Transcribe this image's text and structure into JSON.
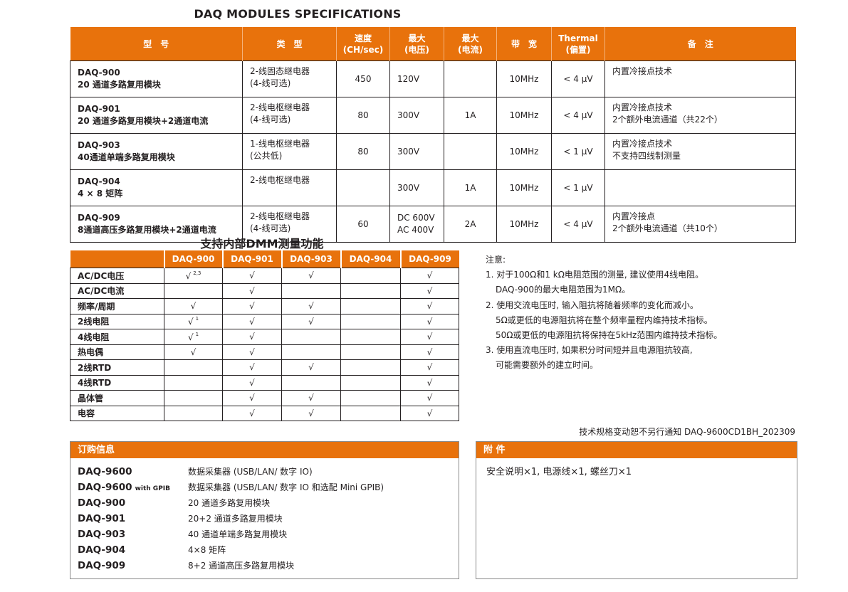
{
  "title": "DAQ MODULES SPECIFICATIONS",
  "colors": {
    "accent": "#e8720c"
  },
  "spec_table": {
    "headers": [
      "型　号",
      "类　型",
      "速度\n(CH/sec)",
      "最大\n(电压)",
      "最大\n(电流)",
      "带　宽",
      "Thermal\n(偏置)",
      "备　注"
    ],
    "rows": [
      {
        "model": "DAQ-900",
        "model_desc": "20 通道多路复用模块",
        "type": "2-线固态继电器\n(4-线可选)",
        "speed": "450",
        "max_voltage": "120V",
        "max_current": "",
        "bandwidth": "10MHz",
        "thermal": "< 4 μV",
        "remarks": "内置冷接点技术"
      },
      {
        "model": "DAQ-901",
        "model_desc": "20  通道多路复用模块+2通道电流",
        "type": "2-线电枢继电器\n(4-线可选)",
        "speed": "80",
        "max_voltage": "300V",
        "max_current": "1A",
        "bandwidth": "10MHz",
        "thermal": "< 4 μV",
        "remarks": "内置冷接点技术\n2个额外电流通道（共22个）"
      },
      {
        "model": "DAQ-903",
        "model_desc": "40通道单端多路复用模块",
        "type": "1-线电枢继电器\n(公共低)",
        "speed": "80",
        "max_voltage": "300V",
        "max_current": "",
        "bandwidth": "10MHz",
        "thermal": "< 1 μV",
        "remarks": "内置冷接点技术\n不支持四线制测量"
      },
      {
        "model": "DAQ-904",
        "model_desc": "4 × 8 矩阵",
        "type": "2-线电枢继电器",
        "speed": "",
        "max_voltage": "300V",
        "max_current": "1A",
        "bandwidth": "10MHz",
        "thermal": "< 1 μV",
        "remarks": ""
      },
      {
        "model": "DAQ-909",
        "model_desc": "8通道高压多路复用模块+2通道电流",
        "type": "2-线电枢继电器\n(4-线可选)",
        "speed": "60",
        "max_voltage": "DC 600V\nAC 400V",
        "max_current": "2A",
        "bandwidth": "10MHz",
        "thermal": "< 4 μV",
        "remarks": "内置冷接点\n2个额外电流通道（共10个）"
      }
    ]
  },
  "dmm": {
    "title": "支持内部DMM测量功能",
    "columns": [
      "DAQ-900",
      "DAQ-901",
      "DAQ-903",
      "DAQ-904",
      "DAQ-909"
    ],
    "check": "√",
    "rows": [
      {
        "label": "AC/DC电压",
        "cells": [
          [
            "√",
            "2,3"
          ],
          [
            "√",
            ""
          ],
          [
            "√",
            ""
          ],
          [
            "",
            ""
          ],
          [
            "√",
            ""
          ]
        ]
      },
      {
        "label": "AC/DC电流",
        "cells": [
          [
            "",
            ""
          ],
          [
            "√",
            ""
          ],
          [
            "",
            ""
          ],
          [
            "",
            ""
          ],
          [
            "√",
            ""
          ]
        ]
      },
      {
        "label": "频率/周期",
        "cells": [
          [
            "√",
            ""
          ],
          [
            "√",
            ""
          ],
          [
            "√",
            ""
          ],
          [
            "",
            ""
          ],
          [
            "√",
            ""
          ]
        ]
      },
      {
        "label": "2线电阻",
        "cells": [
          [
            "√",
            "1"
          ],
          [
            "√",
            ""
          ],
          [
            "√",
            ""
          ],
          [
            "",
            ""
          ],
          [
            "√",
            ""
          ]
        ]
      },
      {
        "label": "4线电阻",
        "cells": [
          [
            "√",
            "1"
          ],
          [
            "√",
            ""
          ],
          [
            "",
            ""
          ],
          [
            "",
            ""
          ],
          [
            "√",
            ""
          ]
        ]
      },
      {
        "label": "热电偶",
        "cells": [
          [
            "√",
            ""
          ],
          [
            "√",
            ""
          ],
          [
            "",
            ""
          ],
          [
            "",
            ""
          ],
          [
            "√",
            ""
          ]
        ]
      },
      {
        "label": "2线RTD",
        "cells": [
          [
            "",
            ""
          ],
          [
            "√",
            ""
          ],
          [
            "√",
            ""
          ],
          [
            "",
            ""
          ],
          [
            "√",
            ""
          ]
        ]
      },
      {
        "label": "4线RTD",
        "cells": [
          [
            "",
            ""
          ],
          [
            "√",
            ""
          ],
          [
            "",
            ""
          ],
          [
            "",
            ""
          ],
          [
            "√",
            ""
          ]
        ]
      },
      {
        "label": "晶体管",
        "cells": [
          [
            "",
            ""
          ],
          [
            "√",
            ""
          ],
          [
            "√",
            ""
          ],
          [
            "",
            ""
          ],
          [
            "√",
            ""
          ]
        ]
      },
      {
        "label": "电容",
        "cells": [
          [
            "",
            ""
          ],
          [
            "√",
            ""
          ],
          [
            "√",
            ""
          ],
          [
            "",
            ""
          ],
          [
            "√",
            ""
          ]
        ]
      }
    ]
  },
  "notes": {
    "heading": "注意:",
    "lines": [
      {
        "text": "1. 对于100Ω和1 kΩ电阻范围的测量, 建议使用4线电阻。",
        "indent": false
      },
      {
        "text": "DAQ-900的最大电阻范围为1MΩ。",
        "indent": true
      },
      {
        "text": "2. 使用交流电压时, 输入阻抗将随着频率的变化而减小。",
        "indent": false
      },
      {
        "text": "5Ω或更低的电源阻抗将在整个频率量程内维持技术指标。",
        "indent": true
      },
      {
        "text": "50Ω或更低的电源阻抗将保持在5kHz范围内维持技术指标。",
        "indent": true
      },
      {
        "text": "3. 使用直流电压时, 如果积分时间短并且电源阻抗较高,",
        "indent": false
      },
      {
        "text": "可能需要额外的建立时间。",
        "indent": true
      }
    ]
  },
  "footer": "技术规格变动恕不另行通知  DAQ-9600CD1BH_202309",
  "ordering": {
    "heading": "订购信息",
    "items": [
      {
        "model": "DAQ-9600",
        "suffix": "",
        "desc": "数据采集器 (USB/LAN/ 数字 IO)"
      },
      {
        "model": "DAQ-9600",
        "suffix": "with GPIB",
        "desc": "数据采集器 (USB/LAN/ 数字 IO 和选配 Mini GPIB)"
      },
      {
        "model": "DAQ-900",
        "suffix": "",
        "desc": "20 通道多路复用模块"
      },
      {
        "model": "DAQ-901",
        "suffix": "",
        "desc": "20+2 通道多路复用模块"
      },
      {
        "model": "DAQ-903",
        "suffix": "",
        "desc": "40 通道单端多路复用模块"
      },
      {
        "model": "DAQ-904",
        "suffix": "",
        "desc": "4×8 矩阵"
      },
      {
        "model": "DAQ-909",
        "suffix": "",
        "desc": "8+2 通道高压多路复用模块"
      }
    ]
  },
  "accessories": {
    "heading": "附 件",
    "text": "安全说明×1, 电源线×1, 螺丝刀×1"
  }
}
